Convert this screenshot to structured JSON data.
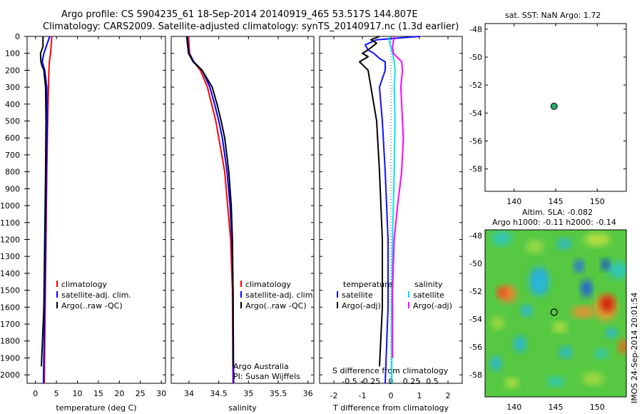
{
  "header": {
    "line1": "Argo profile: CS 5904235_61 18-Sep-2014 20140919_465 53.517S 144.807E",
    "line2": "Climatology: CARS2009. Satellite-adjusted climatology: synTS_20140917.nc (1.3d earlier)"
  },
  "depth_ticks": [
    "0",
    "100",
    "200",
    "300",
    "400",
    "500",
    "600",
    "700",
    "800",
    "900",
    "1000",
    "1100",
    "1200",
    "1300",
    "1400",
    "1500",
    "1600",
    "1700",
    "1800",
    "1900",
    "2000"
  ],
  "colors": {
    "climatology": "#ff0000",
    "satellite": "#0000ff",
    "argo": "#000000",
    "sat_t": "#1010ff",
    "sat_s": "#00e5ee",
    "argo_s": "#ff00ff",
    "marker": "#22aa66"
  },
  "chart_data": [
    {
      "type": "line",
      "name": "temperature",
      "xlabel": "temperature (deg C)",
      "xlim": [
        -2,
        31
      ],
      "ylim": [
        2050,
        0
      ],
      "xticks": [
        "0",
        "5",
        "10",
        "15",
        "20",
        "25",
        "30"
      ],
      "legend": [
        "climatology",
        "satellite-adj. clim.",
        "Argo(..raw -QC)"
      ],
      "series": [
        {
          "name": "climatology",
          "depth": [
            0,
            100,
            150,
            200,
            300,
            500,
            800,
            1200,
            1600,
            2050
          ],
          "values": [
            3.9,
            3.6,
            3.3,
            3.2,
            3.1,
            2.9,
            2.7,
            2.5,
            2.3,
            2.1
          ]
        },
        {
          "name": "satellite-adj. clim.",
          "depth": [
            0,
            100,
            150,
            200,
            300,
            500,
            800,
            1200,
            1600,
            2050
          ],
          "values": [
            3.4,
            2.0,
            1.6,
            2.2,
            2.7,
            2.8,
            2.6,
            2.4,
            2.2,
            1.9
          ]
        },
        {
          "name": "Argo(..raw -QC)",
          "depth": [
            0,
            60,
            100,
            150,
            170,
            200,
            300,
            500,
            800,
            1200,
            1600,
            1950
          ],
          "values": [
            1.8,
            1.8,
            1.2,
            1.3,
            1.5,
            2.0,
            2.4,
            2.5,
            2.4,
            2.2,
            2.0,
            1.4
          ]
        }
      ]
    },
    {
      "type": "line",
      "name": "salinity",
      "xlabel": "salinity",
      "xlim": [
        33.7,
        36.1
      ],
      "ylim": [
        2050,
        0
      ],
      "xticks": [
        "34",
        "34.5",
        "35",
        "35.5",
        "36"
      ],
      "legend": [
        "climatology",
        "satellite-adj. clim.",
        "Argo(..raw -QC)"
      ],
      "annotations": [
        "Argo Australia",
        "PI: Susan Wijffels"
      ],
      "series": [
        {
          "name": "climatology",
          "depth": [
            0,
            100,
            150,
            200,
            300,
            400,
            500,
            600,
            800,
            1000,
            1200,
            1500,
            2050
          ],
          "values": [
            33.99,
            34.01,
            34.08,
            34.19,
            34.31,
            34.38,
            34.45,
            34.5,
            34.6,
            34.65,
            34.7,
            34.73,
            34.74
          ]
        },
        {
          "name": "satellite-adj. clim.",
          "depth": [
            0,
            100,
            150,
            200,
            300,
            400,
            500,
            600,
            800,
            1000,
            1200,
            1500,
            2050
          ],
          "values": [
            33.97,
            34.0,
            34.08,
            34.22,
            34.35,
            34.43,
            34.5,
            34.56,
            34.64,
            34.69,
            34.72,
            34.74,
            34.75
          ]
        },
        {
          "name": "Argo(..raw -QC)",
          "depth": [
            0,
            100,
            150,
            200,
            300,
            400,
            500,
            600,
            800,
            1000,
            1200,
            1500,
            1950
          ],
          "values": [
            33.96,
            33.99,
            34.07,
            34.22,
            34.39,
            34.47,
            34.54,
            34.6,
            34.67,
            34.71,
            34.73,
            34.74,
            34.74
          ]
        }
      ]
    },
    {
      "type": "line",
      "name": "differences",
      "xlabel": "T difference from climatology",
      "xlabel_top": "S difference from climatology",
      "xlim": [
        -2.5,
        2.5
      ],
      "ylim": [
        2050,
        0
      ],
      "xticks": [
        "-2",
        "-1",
        "0",
        "1",
        "2"
      ],
      "xticks_top": [
        "-0.5",
        "-0.25",
        "0",
        "0.25",
        "0.5"
      ],
      "legend_left": [
        "temperature",
        "satellite",
        "Argo(-adj)"
      ],
      "legend_right": [
        "salinity",
        "satellite",
        "Argo(-adj)"
      ],
      "series": [
        {
          "name": "temperature satellite",
          "depth": [
            0,
            20,
            50,
            80,
            100,
            130,
            150,
            200,
            300,
            500,
            800,
            1200,
            1600,
            2050
          ],
          "values": [
            1.0,
            -0.5,
            -0.9,
            -0.8,
            -0.6,
            -0.4,
            -0.2,
            -0.2,
            -0.4,
            -0.3,
            -0.2,
            -0.1,
            -0.1,
            -0.2
          ]
        },
        {
          "name": "temperature Argo(-adj)",
          "depth": [
            0,
            20,
            40,
            60,
            80,
            100,
            120,
            150,
            200,
            300,
            500,
            800,
            1200,
            1600,
            1950
          ],
          "values": [
            -0.4,
            -0.7,
            -0.5,
            -0.65,
            -0.8,
            -1.0,
            -0.8,
            -1.1,
            -0.8,
            -0.7,
            -0.5,
            -0.4,
            -0.3,
            -0.3,
            -0.4
          ]
        },
        {
          "name": "salinity satellite",
          "depth": [
            0,
            50,
            100,
            150,
            200,
            300,
            500,
            800,
            1200,
            1600,
            2050
          ],
          "values": [
            -0.02,
            -0.01,
            0.02,
            0.04,
            0.05,
            0.04,
            0.05,
            0.04,
            0.02,
            0.01,
            0.01
          ]
        },
        {
          "name": "salinity Argo(-adj)",
          "depth": [
            0,
            60,
            100,
            150,
            200,
            300,
            400,
            600,
            800,
            1000,
            1200,
            1500,
            1900
          ],
          "values": [
            0.04,
            0.02,
            0.03,
            0.13,
            0.14,
            0.12,
            0.13,
            0.15,
            0.13,
            0.08,
            0.04,
            0.02,
            0.02
          ]
        }
      ]
    },
    {
      "type": "scatter",
      "name": "location",
      "title": "sat. SST: NaN Argo: 1.72",
      "xlim": [
        136.5,
        153.5
      ],
      "ylim": [
        -59.6,
        -47.6
      ],
      "xticks": [
        "140",
        "145",
        "150"
      ],
      "yticks": [
        "-48",
        "-50",
        "-52",
        "-54",
        "-56",
        "-58"
      ],
      "points": [
        {
          "x": 144.807,
          "y": -53.517
        }
      ]
    },
    {
      "type": "heatmap",
      "name": "altimetry",
      "title1": "Altim. SLA: -0.082",
      "title2": "Argo h1000: -0.11 h2000: -0.14",
      "xlim": [
        136.5,
        153.5
      ],
      "ylim": [
        -59.6,
        -47.6
      ],
      "xticks": [
        "140",
        "145",
        "150"
      ],
      "yticks": [
        "-48",
        "-50",
        "-52",
        "-54",
        "-56",
        "-58"
      ],
      "points": [
        {
          "x": 144.807,
          "y": -53.517
        }
      ]
    }
  ],
  "timestamp": "IMOS 24-Sep-2014 20:01:54"
}
